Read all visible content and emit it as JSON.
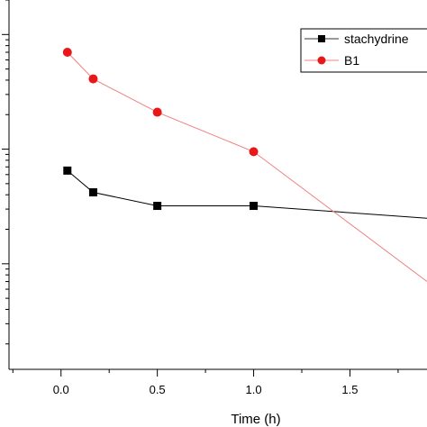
{
  "chart_data": {
    "type": "line",
    "xlabel": "Time (h)",
    "ylabel": "",
    "x_ticks": [
      "0.0",
      "0.5",
      "1.0",
      "1.5"
    ],
    "xlim": [
      -0.27,
      1.9
    ],
    "y_scale": "log",
    "ylim": [
      1.2,
      2000
    ],
    "legend_position": "top-right",
    "grid": false,
    "series": [
      {
        "name": "stachydrine",
        "color": "#000000",
        "marker": "square",
        "x": [
          0.033,
          0.167,
          0.5,
          1.0,
          1.9
        ],
        "y": [
          65,
          42,
          32,
          32,
          25
        ]
      },
      {
        "name": "B1",
        "color": "#e8171a",
        "line_color": "#f08080",
        "marker": "circle",
        "x": [
          0.033,
          0.167,
          0.5,
          1.0,
          1.9
        ],
        "y": [
          700,
          410,
          210,
          95,
          7
        ]
      }
    ]
  }
}
